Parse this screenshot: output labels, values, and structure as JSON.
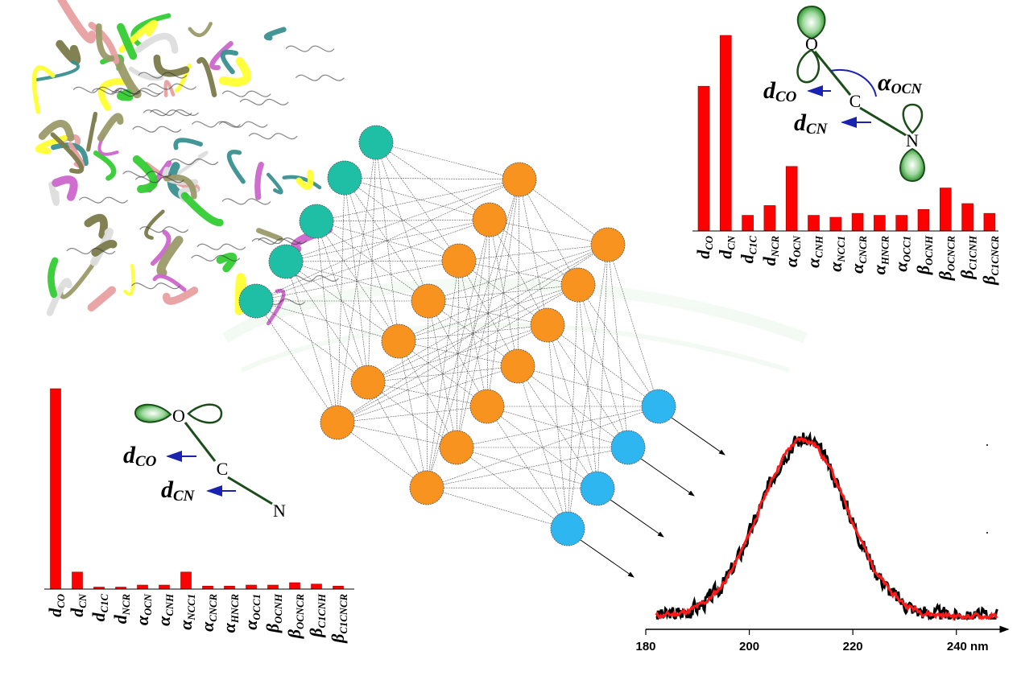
{
  "colors": {
    "bar": "#ff0000",
    "bar_stroke": "#990000",
    "input_node": "#1fbfa5",
    "hidden_node": "#f7931e",
    "output_node": "#2db6f0",
    "orbital_line": "#1a4d1a",
    "orbital_fill": "#1e8a1e",
    "arrow_blue": "#1a23b0",
    "spectrum_black": "#000000",
    "spectrum_red": "#ff1a1a"
  },
  "network": {
    "layers": [
      5,
      7,
      7,
      4
    ]
  },
  "molecule_left": {
    "atoms": {
      "o": "O",
      "c": "C",
      "n": "N"
    },
    "labels": {
      "d_co": "d",
      "d_co_sub": "CO",
      "d_cn": "d",
      "d_cn_sub": "CN"
    }
  },
  "molecule_right": {
    "atoms": {
      "o": "O",
      "c": "C",
      "n": "N"
    },
    "labels": {
      "d_co": "d",
      "d_co_sub": "CO",
      "d_cn": "d",
      "d_cn_sub": "CN",
      "alpha": "α",
      "alpha_sub": "OCN"
    }
  },
  "chart_data": [
    {
      "type": "bar",
      "name": "top-right",
      "categories": [
        {
          "sym": "d",
          "sub": "CO"
        },
        {
          "sym": "d",
          "sub": "CN"
        },
        {
          "sym": "d",
          "sub": "C1C"
        },
        {
          "sym": "d",
          "sub": "NCR"
        },
        {
          "sym": "α",
          "sub": "OCN"
        },
        {
          "sym": "α",
          "sub": "CNH"
        },
        {
          "sym": "α",
          "sub": "NCC1"
        },
        {
          "sym": "α",
          "sub": "CNCR"
        },
        {
          "sym": "α",
          "sub": "HNCR"
        },
        {
          "sym": "α",
          "sub": "OCC1"
        },
        {
          "sym": "β",
          "sub": "OCNH"
        },
        {
          "sym": "β",
          "sub": "OCNCR"
        },
        {
          "sym": "β",
          "sub": "C1CNH"
        },
        {
          "sym": "β",
          "sub": "C1CNCR"
        }
      ],
      "values": [
        0.74,
        1.0,
        0.08,
        0.13,
        0.33,
        0.08,
        0.07,
        0.09,
        0.08,
        0.08,
        0.11,
        0.22,
        0.14,
        0.09
      ]
    },
    {
      "type": "bar",
      "name": "bottom-left",
      "categories": [
        {
          "sym": "d",
          "sub": "CO"
        },
        {
          "sym": "d",
          "sub": "CN"
        },
        {
          "sym": "d",
          "sub": "C1C"
        },
        {
          "sym": "d",
          "sub": "NCR"
        },
        {
          "sym": "α",
          "sub": "OCN"
        },
        {
          "sym": "α",
          "sub": "CNH"
        },
        {
          "sym": "α",
          "sub": "NCC1"
        },
        {
          "sym": "α",
          "sub": "CNCR"
        },
        {
          "sym": "α",
          "sub": "HNCR"
        },
        {
          "sym": "α",
          "sub": "OCC1"
        },
        {
          "sym": "β",
          "sub": "OCNH"
        },
        {
          "sym": "β",
          "sub": "OCNCR"
        },
        {
          "sym": "β",
          "sub": "C1CNH"
        },
        {
          "sym": "β",
          "sub": "C1CNCR"
        }
      ],
      "values": [
        1.0,
        0.085,
        0.01,
        0.01,
        0.02,
        0.02,
        0.085,
        0.015,
        0.015,
        0.02,
        0.02,
        0.032,
        0.025,
        0.015
      ]
    },
    {
      "type": "line",
      "name": "spectrum",
      "xlim": [
        180,
        250
      ],
      "x_ticks": [
        "180",
        "200",
        "220",
        "240 nm"
      ],
      "x_tick_values": [
        180,
        200,
        220,
        240
      ],
      "peak_center": 210.5,
      "peak_width_sigma": 8.5,
      "x_range_data": [
        182,
        248
      ],
      "series": [
        {
          "color": "black",
          "noise": 0.06
        },
        {
          "color": "red",
          "noise": 0.03
        }
      ]
    }
  ]
}
